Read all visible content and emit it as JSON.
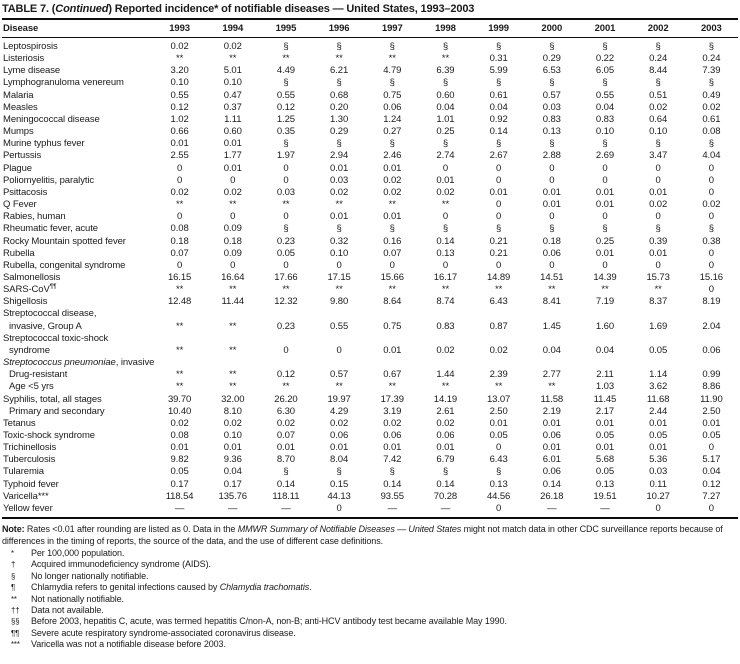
{
  "title": {
    "parts": [
      {
        "t": "TABLE 7. ("
      },
      {
        "t": "Continued",
        "i": true
      },
      {
        "t": ") Reported incidence* of notifiable diseases — United States, 1993–2003"
      }
    ]
  },
  "table": {
    "disease_column_header": "Disease",
    "year_columns": [
      "1993",
      "1994",
      "1995",
      "1996",
      "1997",
      "1998",
      "1999",
      "2000",
      "2001",
      "2002",
      "2003"
    ],
    "rows": [
      {
        "label": "Leptospirosis",
        "values": [
          "0.02",
          "0.02",
          "§",
          "§",
          "§",
          "§",
          "§",
          "§",
          "§",
          "§",
          "§"
        ]
      },
      {
        "label": "Listeriosis",
        "values": [
          "**",
          "**",
          "**",
          "**",
          "**",
          "**",
          "0.31",
          "0.29",
          "0.22",
          "0.24",
          "0.24"
        ]
      },
      {
        "label": "Lyme disease",
        "values": [
          "3.20",
          "5.01",
          "4.49",
          "6.21",
          "4.79",
          "6.39",
          "5.99",
          "6.53",
          "6.05",
          "8.44",
          "7.39"
        ]
      },
      {
        "label": "Lymphogranuloma venereum",
        "values": [
          "0.10",
          "0.10",
          "§",
          "§",
          "§",
          "§",
          "§",
          "§",
          "§",
          "§",
          "§"
        ]
      },
      {
        "label": "Malaria",
        "values": [
          "0.55",
          "0.47",
          "0.55",
          "0.68",
          "0.75",
          "0.60",
          "0.61",
          "0.57",
          "0.55",
          "0.51",
          "0.49"
        ]
      },
      {
        "label": "Measles",
        "values": [
          "0.12",
          "0.37",
          "0.12",
          "0.20",
          "0.06",
          "0.04",
          "0.04",
          "0.03",
          "0.04",
          "0.02",
          "0.02"
        ]
      },
      {
        "label": "Meningococcal disease",
        "values": [
          "1.02",
          "1.11",
          "1.25",
          "1.30",
          "1.24",
          "1.01",
          "0.92",
          "0.83",
          "0.83",
          "0.64",
          "0.61"
        ]
      },
      {
        "label": "Mumps",
        "values": [
          "0.66",
          "0.60",
          "0.35",
          "0.29",
          "0.27",
          "0.25",
          "0.14",
          "0.13",
          "0.10",
          "0.10",
          "0.08"
        ]
      },
      {
        "label": "Murine typhus fever",
        "values": [
          "0.01",
          "0.01",
          "§",
          "§",
          "§",
          "§",
          "§",
          "§",
          "§",
          "§",
          "§"
        ]
      },
      {
        "label": "Pertussis",
        "values": [
          "2.55",
          "1.77",
          "1.97",
          "2.94",
          "2.46",
          "2.74",
          "2.67",
          "2.88",
          "2.69",
          "3.47",
          "4.04"
        ]
      },
      {
        "label": "Plague",
        "values": [
          "0",
          "0.01",
          "0",
          "0.01",
          "0.01",
          "0",
          "0",
          "0",
          "0",
          "0",
          "0"
        ]
      },
      {
        "label": "Poliomyelitis, paralytic",
        "values": [
          "0",
          "0",
          "0",
          "0.03",
          "0.02",
          "0.01",
          "0",
          "0",
          "0",
          "0",
          "0"
        ]
      },
      {
        "label": "Psittacosis",
        "values": [
          "0.02",
          "0.02",
          "0.03",
          "0.02",
          "0.02",
          "0.02",
          "0.01",
          "0.01",
          "0.01",
          "0.01",
          "0"
        ]
      },
      {
        "label": "Q Fever",
        "values": [
          "**",
          "**",
          "**",
          "**",
          "**",
          "**",
          "0",
          "0.01",
          "0.01",
          "0.02",
          "0.02"
        ]
      },
      {
        "label": "Rabies, human",
        "values": [
          "0",
          "0",
          "0",
          "0.01",
          "0.01",
          "0",
          "0",
          "0",
          "0",
          "0",
          "0"
        ]
      },
      {
        "label": "Rheumatic fever, acute",
        "values": [
          "0.08",
          "0.09",
          "§",
          "§",
          "§",
          "§",
          "§",
          "§",
          "§",
          "§",
          "§"
        ]
      },
      {
        "label": "Rocky Mountain spotted fever",
        "values": [
          "0.18",
          "0.18",
          "0.23",
          "0.32",
          "0.16",
          "0.14",
          "0.21",
          "0.18",
          "0.25",
          "0.39",
          "0.38"
        ]
      },
      {
        "label": "Rubella",
        "values": [
          "0.07",
          "0.09",
          "0.05",
          "0.10",
          "0.07",
          "0.13",
          "0.21",
          "0.06",
          "0.01",
          "0.01",
          "0"
        ]
      },
      {
        "label": "Rubella, congenital syndrome",
        "values": [
          "0",
          "0",
          "0",
          "0",
          "0",
          "0",
          "0",
          "0",
          "0",
          "0",
          "0"
        ]
      },
      {
        "label": "Salmonellosis",
        "values": [
          "16.15",
          "16.64",
          "17.66",
          "17.15",
          "15.66",
          "16.17",
          "14.89",
          "14.51",
          "14.39",
          "15.73",
          "15.16"
        ]
      },
      {
        "label": "SARS-CoV",
        "sup": "¶¶",
        "values": [
          "**",
          "**",
          "**",
          "**",
          "**",
          "**",
          "**",
          "**",
          "**",
          "**",
          "0"
        ]
      },
      {
        "label": "Shigellosis",
        "values": [
          "12.48",
          "11.44",
          "12.32",
          "9.80",
          "8.64",
          "8.74",
          "6.43",
          "8.41",
          "7.19",
          "8.37",
          "8.19"
        ]
      },
      {
        "label": "Streptococcal disease,",
        "label2": "invasive, Group A",
        "values": [
          "**",
          "**",
          "0.23",
          "0.55",
          "0.75",
          "0.83",
          "0.87",
          "1.45",
          "1.60",
          "1.69",
          "2.04"
        ]
      },
      {
        "label": "Streptococcal toxic-shock",
        "label2": "syndrome",
        "values": [
          "**",
          "**",
          "0",
          "0",
          "0.01",
          "0.02",
          "0.02",
          "0.04",
          "0.04",
          "0.05",
          "0.06"
        ]
      },
      {
        "label_italic": "Streptococcus pneumoniae",
        "label": ", invasive",
        "section": true
      },
      {
        "label": "Drug-resistant",
        "indent": true,
        "values": [
          "**",
          "**",
          "0.12",
          "0.57",
          "0.67",
          "1.44",
          "2.39",
          "2.77",
          "2.11",
          "1.14",
          "0.99"
        ]
      },
      {
        "label": "Age <5 yrs",
        "indent": true,
        "values": [
          "**",
          "**",
          "**",
          "**",
          "**",
          "**",
          "**",
          "**",
          "1.03",
          "3.62",
          "8.86"
        ]
      },
      {
        "label": "Syphilis, total, all stages",
        "values": [
          "39.70",
          "32.00",
          "26.20",
          "19.97",
          "17.39",
          "14.19",
          "13.07",
          "11.58",
          "11.45",
          "11.68",
          "11.90"
        ]
      },
      {
        "label": "Primary and secondary",
        "indent": true,
        "values": [
          "10.40",
          "8.10",
          "6.30",
          "4.29",
          "3.19",
          "2.61",
          "2.50",
          "2.19",
          "2.17",
          "2.44",
          "2.50"
        ]
      },
      {
        "label": "Tetanus",
        "values": [
          "0.02",
          "0.02",
          "0.02",
          "0.02",
          "0.02",
          "0.02",
          "0.01",
          "0.01",
          "0.01",
          "0.01",
          "0.01"
        ]
      },
      {
        "label": "Toxic-shock syndrome",
        "values": [
          "0.08",
          "0.10",
          "0.07",
          "0.06",
          "0.06",
          "0.06",
          "0.05",
          "0.06",
          "0.05",
          "0.05",
          "0.05"
        ]
      },
      {
        "label": "Trichinellosis",
        "values": [
          "0.01",
          "0.01",
          "0.01",
          "0.01",
          "0.01",
          "0.01",
          "0",
          "0.01",
          "0.01",
          "0.01",
          "0"
        ]
      },
      {
        "label": "Tuberculosis",
        "values": [
          "9.82",
          "9.36",
          "8.70",
          "8.04",
          "7.42",
          "6.79",
          "6.43",
          "6.01",
          "5.68",
          "5.36",
          "5.17"
        ]
      },
      {
        "label": "Tularemia",
        "values": [
          "0.05",
          "0.04",
          "§",
          "§",
          "§",
          "§",
          "§",
          "0.06",
          "0.05",
          "0.03",
          "0.04"
        ]
      },
      {
        "label": "Typhoid fever",
        "values": [
          "0.17",
          "0.17",
          "0.14",
          "0.15",
          "0.14",
          "0.14",
          "0.13",
          "0.14",
          "0.13",
          "0.11",
          "0.12"
        ]
      },
      {
        "label": "Varicella***",
        "values": [
          "118.54",
          "135.76",
          "118.11",
          "44.13",
          "93.55",
          "70.28",
          "44.56",
          "26.18",
          "19.51",
          "10.27",
          "7.27"
        ]
      },
      {
        "label": "Yellow fever",
        "values": [
          "—",
          "—",
          "—",
          "0",
          "—",
          "—",
          "0",
          "—",
          "—",
          "0",
          "0"
        ]
      }
    ]
  },
  "notes": {
    "main": {
      "parts": [
        {
          "t": "Note:",
          "b": true
        },
        {
          "t": " Rates <0.01 after rounding are listed as 0. Data in the "
        },
        {
          "t": "MMWR Summary of Notifiable Diseases — United States",
          "i": true
        },
        {
          "t": " might not match data in other CDC surveillance reports because of differences in the timing of reports, the source of the data, and the use of different case definitions."
        }
      ]
    },
    "footnotes": [
      {
        "marker": "*",
        "parts": [
          {
            "t": "Per 100,000 population."
          }
        ]
      },
      {
        "marker": "†",
        "parts": [
          {
            "t": "Acquired immunodeficiency syndrome (AIDS)."
          }
        ]
      },
      {
        "marker": "§",
        "parts": [
          {
            "t": "No longer nationally notifiable."
          }
        ]
      },
      {
        "marker": "¶",
        "parts": [
          {
            "t": "Chlamydia refers to genital infections caused by "
          },
          {
            "t": "Chlamydia trachomatis",
            "i": true
          },
          {
            "t": "."
          }
        ]
      },
      {
        "marker": "**",
        "parts": [
          {
            "t": "Not nationally notifiable."
          }
        ]
      },
      {
        "marker": "††",
        "parts": [
          {
            "t": "Data not available."
          }
        ]
      },
      {
        "marker": "§§",
        "parts": [
          {
            "t": "Before 2003, hepatitis C, acute, was termed hepatitis C/non-A, non-B; anti-HCV antibody test became available May 1990."
          }
        ]
      },
      {
        "marker": "¶¶",
        "parts": [
          {
            "t": "Severe acute respiratory syndrome-associated coronavirus disease."
          }
        ]
      },
      {
        "marker": "***",
        "parts": [
          {
            "t": "Varicella was not a notifiable disease before 2003."
          }
        ]
      }
    ]
  },
  "colors": {
    "text": "#1b1b1b",
    "rule": "#0d0d0d",
    "background": "#ffffff"
  }
}
